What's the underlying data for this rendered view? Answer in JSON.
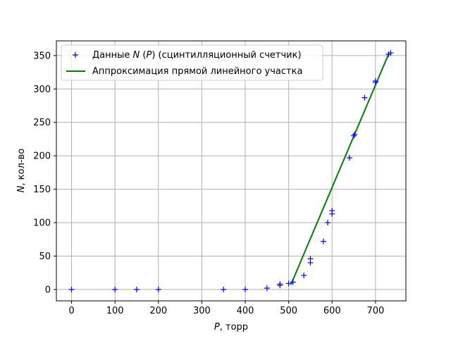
{
  "chart_data": {
    "type": "scatter",
    "xlabel_var": "P",
    "xlabel_rest": ", торр",
    "ylabel_var": "N",
    "ylabel_rest": ", кол-во",
    "xlim": [
      -35,
      770
    ],
    "ylim": [
      -17,
      372
    ],
    "xticks": [
      0,
      100,
      200,
      300,
      400,
      500,
      600,
      700
    ],
    "yticks": [
      0,
      50,
      100,
      150,
      200,
      250,
      300,
      350
    ],
    "grid": true,
    "legend_position": "top-left",
    "series": [
      {
        "name_parts": [
          "Данные ",
          "N",
          " (",
          "P",
          ") (сцинтилляционный счетчик)"
        ],
        "kind": "scatter",
        "marker": "+",
        "color": "#0000ff",
        "points": [
          [
            0,
            0
          ],
          [
            100,
            0
          ],
          [
            150,
            0
          ],
          [
            200,
            0
          ],
          [
            350,
            0
          ],
          [
            400,
            0
          ],
          [
            450,
            2
          ],
          [
            480,
            6
          ],
          [
            480,
            8
          ],
          [
            500,
            9
          ],
          [
            510,
            11
          ],
          [
            535,
            21
          ],
          [
            550,
            40
          ],
          [
            550,
            46
          ],
          [
            580,
            72
          ],
          [
            590,
            100
          ],
          [
            600,
            113
          ],
          [
            600,
            118
          ],
          [
            640,
            197
          ],
          [
            650,
            230
          ],
          [
            652,
            232
          ],
          [
            675,
            287
          ],
          [
            700,
            310
          ],
          [
            700,
            312
          ],
          [
            730,
            352
          ],
          [
            735,
            354
          ]
        ]
      },
      {
        "name_parts": [
          "Аппроксимация прямой линейного участка"
        ],
        "kind": "line",
        "color": "#008000",
        "points": [
          [
            505,
            7
          ],
          [
            730,
            352
          ]
        ]
      }
    ]
  }
}
